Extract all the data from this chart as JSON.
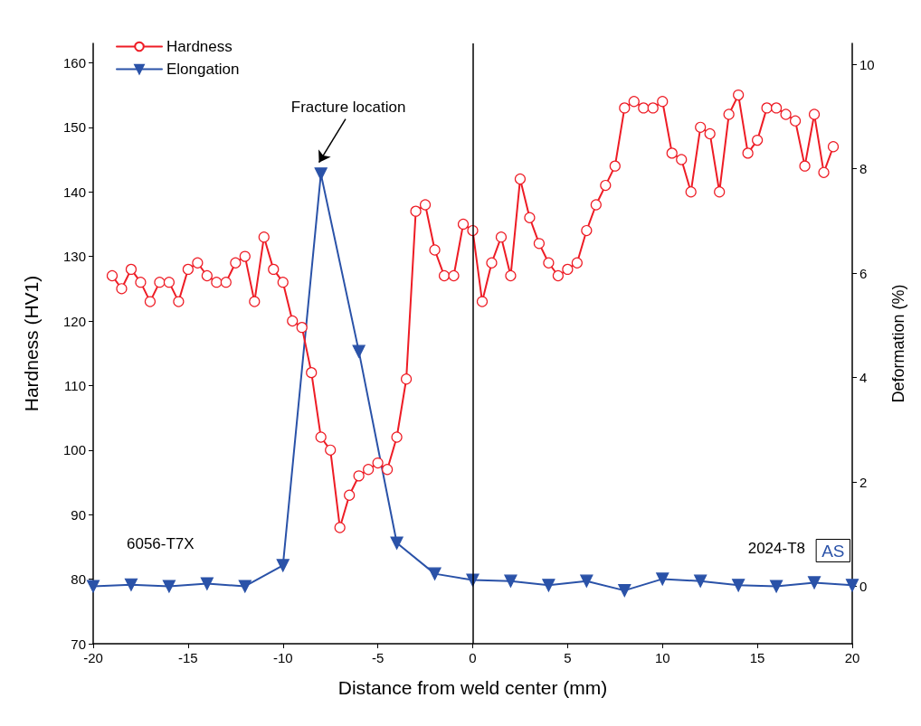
{
  "chart_data": {
    "type": "line",
    "xlabel": "Distance from weld center (mm)",
    "ylabel": "Hardness (HV1)",
    "y2label": "Deformation (%)",
    "xlim": [
      -20,
      20
    ],
    "xticks": [
      -20,
      -15,
      -10,
      -5,
      0,
      5,
      10,
      15,
      20
    ],
    "ylim": [
      70,
      163
    ],
    "yticks": [
      70,
      80,
      90,
      100,
      110,
      120,
      130,
      140,
      150,
      160
    ],
    "y2lim": [
      -1.1,
      10.4
    ],
    "y2ticks": [
      0,
      2,
      4,
      6,
      8,
      10
    ],
    "grid": false,
    "legend": "top left",
    "line_style": "solid",
    "series": [
      {
        "name": "Hardness",
        "color": "#ee1c25",
        "marker": "circle",
        "x": [
          -19,
          -18.5,
          -18,
          -17.5,
          -17,
          -16.5,
          -16,
          -15.5,
          -15,
          -14.5,
          -14,
          -13.5,
          -13,
          -12.5,
          -12,
          -11.5,
          -11,
          -10.5,
          -10,
          -9.5,
          -9,
          -8.5,
          -8,
          -7.5,
          -7,
          -6.5,
          -6,
          -5.5,
          -5,
          -4.5,
          -4,
          -3.5,
          -3,
          -2.5,
          -2,
          -1.5,
          -1,
          -0.5,
          0,
          0.5,
          1,
          1.5,
          2,
          2.5,
          3,
          3.5,
          4,
          4.5,
          5,
          5.5,
          6,
          6.5,
          7,
          7.5,
          8,
          8.5,
          9,
          9.5,
          10,
          10.5,
          11,
          11.5,
          12,
          12.5,
          13,
          13.5,
          14,
          14.5,
          15,
          15.5,
          16,
          16.5,
          17,
          17.5,
          18,
          18.5,
          19
        ],
        "values": [
          127,
          125,
          128,
          126,
          123,
          126,
          126,
          123,
          128,
          129,
          127,
          126,
          126,
          129,
          130,
          123,
          133,
          128,
          126,
          120,
          119,
          112,
          102,
          100,
          88,
          93,
          96,
          97,
          98,
          97,
          102,
          111,
          137,
          138,
          131,
          127,
          127,
          135,
          134,
          123,
          129,
          133,
          127,
          142,
          136,
          132,
          129,
          127,
          128,
          129,
          134,
          138,
          141,
          144,
          153,
          154,
          153,
          153,
          154,
          146,
          145,
          140,
          150,
          149,
          140,
          152,
          155,
          146,
          148,
          153,
          153,
          152,
          151,
          144,
          152,
          143,
          147
        ]
      },
      {
        "name": "Elongation",
        "color": "#2a52a8",
        "marker": "triangle",
        "axis": "y2",
        "x": [
          -20,
          -18,
          -16,
          -14,
          -12,
          -10,
          -8,
          -6,
          -4,
          -2,
          0,
          2,
          4,
          6,
          8,
          10,
          12,
          14,
          16,
          18,
          20
        ],
        "values": [
          0,
          0.03,
          0,
          0.05,
          0,
          0.4,
          7.9,
          4.5,
          0.83,
          0.24,
          0.12,
          0.1,
          0.02,
          0.1,
          -0.08,
          0.14,
          0.1,
          0.02,
          0,
          0.07,
          0.02
        ]
      }
    ],
    "ref_lines": [
      {
        "axis": "x",
        "value": 0,
        "color": "#000000",
        "line_style": "solid"
      }
    ],
    "annotations": [
      "Fracture location",
      "6056-T7X",
      "2024-T8",
      "AS"
    ]
  }
}
